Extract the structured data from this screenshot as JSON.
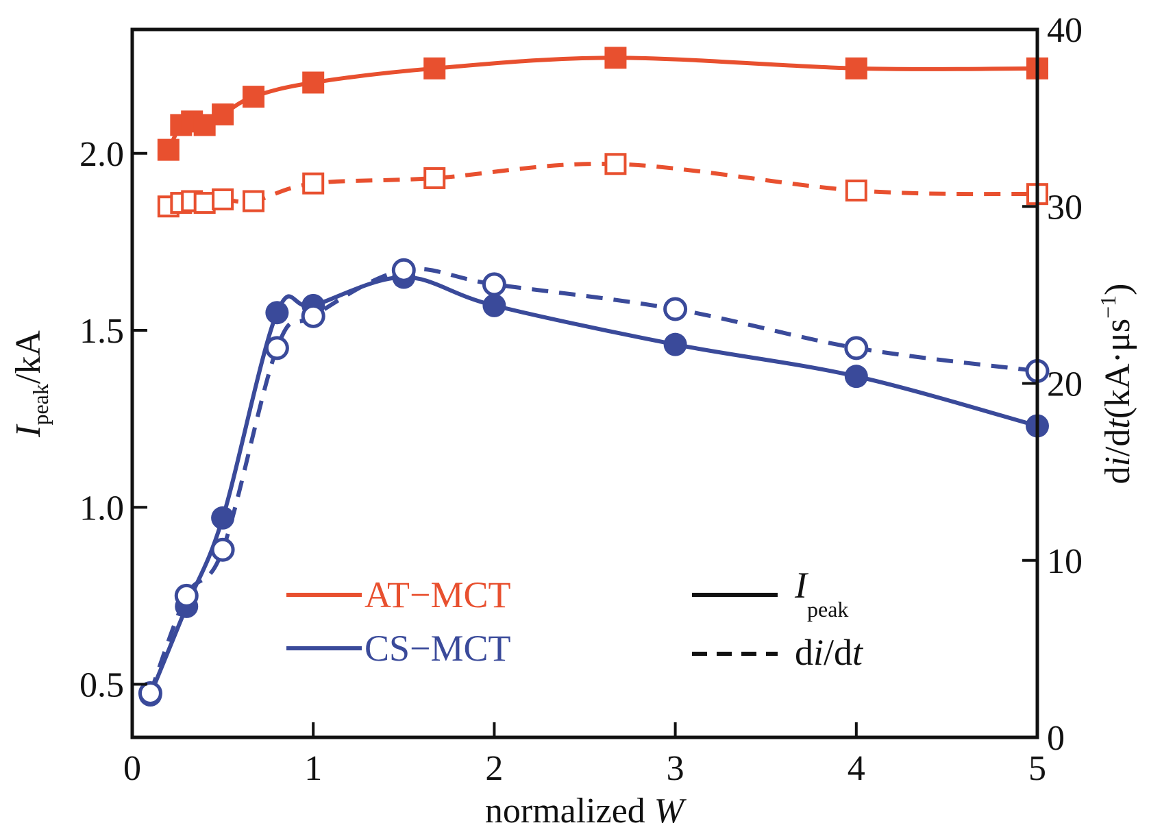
{
  "chart_data": {
    "type": "line",
    "xlabel": {
      "prefix": "normalized ",
      "var": "W"
    },
    "ylabel_left": {
      "var": "I",
      "sub": "peak",
      "unit": "/kA"
    },
    "ylabel_right": {
      "p1": "d",
      "p2": "i",
      "p3": "/d",
      "p4": "t",
      "p5": "(kA·μs",
      "sup": "−1",
      "p6": ")"
    },
    "xlim": [
      0,
      5
    ],
    "ylim_left": [
      0.35,
      2.35
    ],
    "ylim_right": [
      0,
      40
    ],
    "x_ticks": [
      0,
      1,
      2,
      3,
      4,
      5
    ],
    "y_left_ticks": [
      "0.5",
      "1.0",
      "1.5",
      "2.0"
    ],
    "y_left_tick_values": [
      0.5,
      1.0,
      1.5,
      2.0
    ],
    "y_right_ticks": [
      0,
      10,
      20,
      30,
      40
    ],
    "colors": {
      "AT": "#e8502f",
      "CS": "#3a4a9a",
      "axis": "#111111"
    },
    "series": [
      {
        "group": "AT",
        "metric": "Ipeak",
        "axis": "left",
        "marker": "filled-square",
        "line": "solid",
        "x": [
          0.2,
          0.27,
          0.33,
          0.4,
          0.5,
          0.67,
          1.0,
          1.67,
          2.67,
          4.0,
          5.0
        ],
        "y": [
          2.01,
          2.08,
          2.09,
          2.08,
          2.11,
          2.16,
          2.2,
          2.24,
          2.27,
          2.24,
          2.24
        ]
      },
      {
        "group": "AT",
        "metric": "didt",
        "axis": "right",
        "marker": "open-square",
        "line": "dashed",
        "x": [
          0.2,
          0.27,
          0.33,
          0.4,
          0.5,
          0.67,
          1.0,
          1.67,
          2.67,
          4.0,
          5.0
        ],
        "y": [
          30.0,
          30.2,
          30.3,
          30.2,
          30.4,
          30.3,
          31.3,
          31.6,
          32.4,
          30.9,
          30.7
        ]
      },
      {
        "group": "CS",
        "metric": "Ipeak",
        "axis": "left",
        "marker": "filled-circle",
        "line": "solid",
        "x": [
          0.1,
          0.3,
          0.5,
          0.8,
          1.0,
          1.5,
          2.0,
          3.0,
          4.0,
          5.0
        ],
        "y": [
          0.47,
          0.72,
          0.97,
          1.55,
          1.57,
          1.65,
          1.57,
          1.46,
          1.37,
          1.23
        ]
      },
      {
        "group": "CS",
        "metric": "didt",
        "axis": "right",
        "marker": "open-circle",
        "line": "dashed",
        "x": [
          0.1,
          0.3,
          0.5,
          0.8,
          1.0,
          1.5,
          2.0,
          3.0,
          4.0,
          5.0
        ],
        "y": [
          2.5,
          8.0,
          10.6,
          22.0,
          23.8,
          26.4,
          25.6,
          24.2,
          22.0,
          20.7
        ]
      }
    ],
    "legend": {
      "groups": [
        {
          "label": "AT−MCT",
          "key": "AT"
        },
        {
          "label": "CS−MCT",
          "key": "CS"
        }
      ],
      "styles": {
        "solid": {
          "var": "I",
          "sub": "peak"
        },
        "dashed": {
          "p1": "d",
          "p2": "i",
          "p3": "/d",
          "p4": "t"
        }
      }
    }
  }
}
